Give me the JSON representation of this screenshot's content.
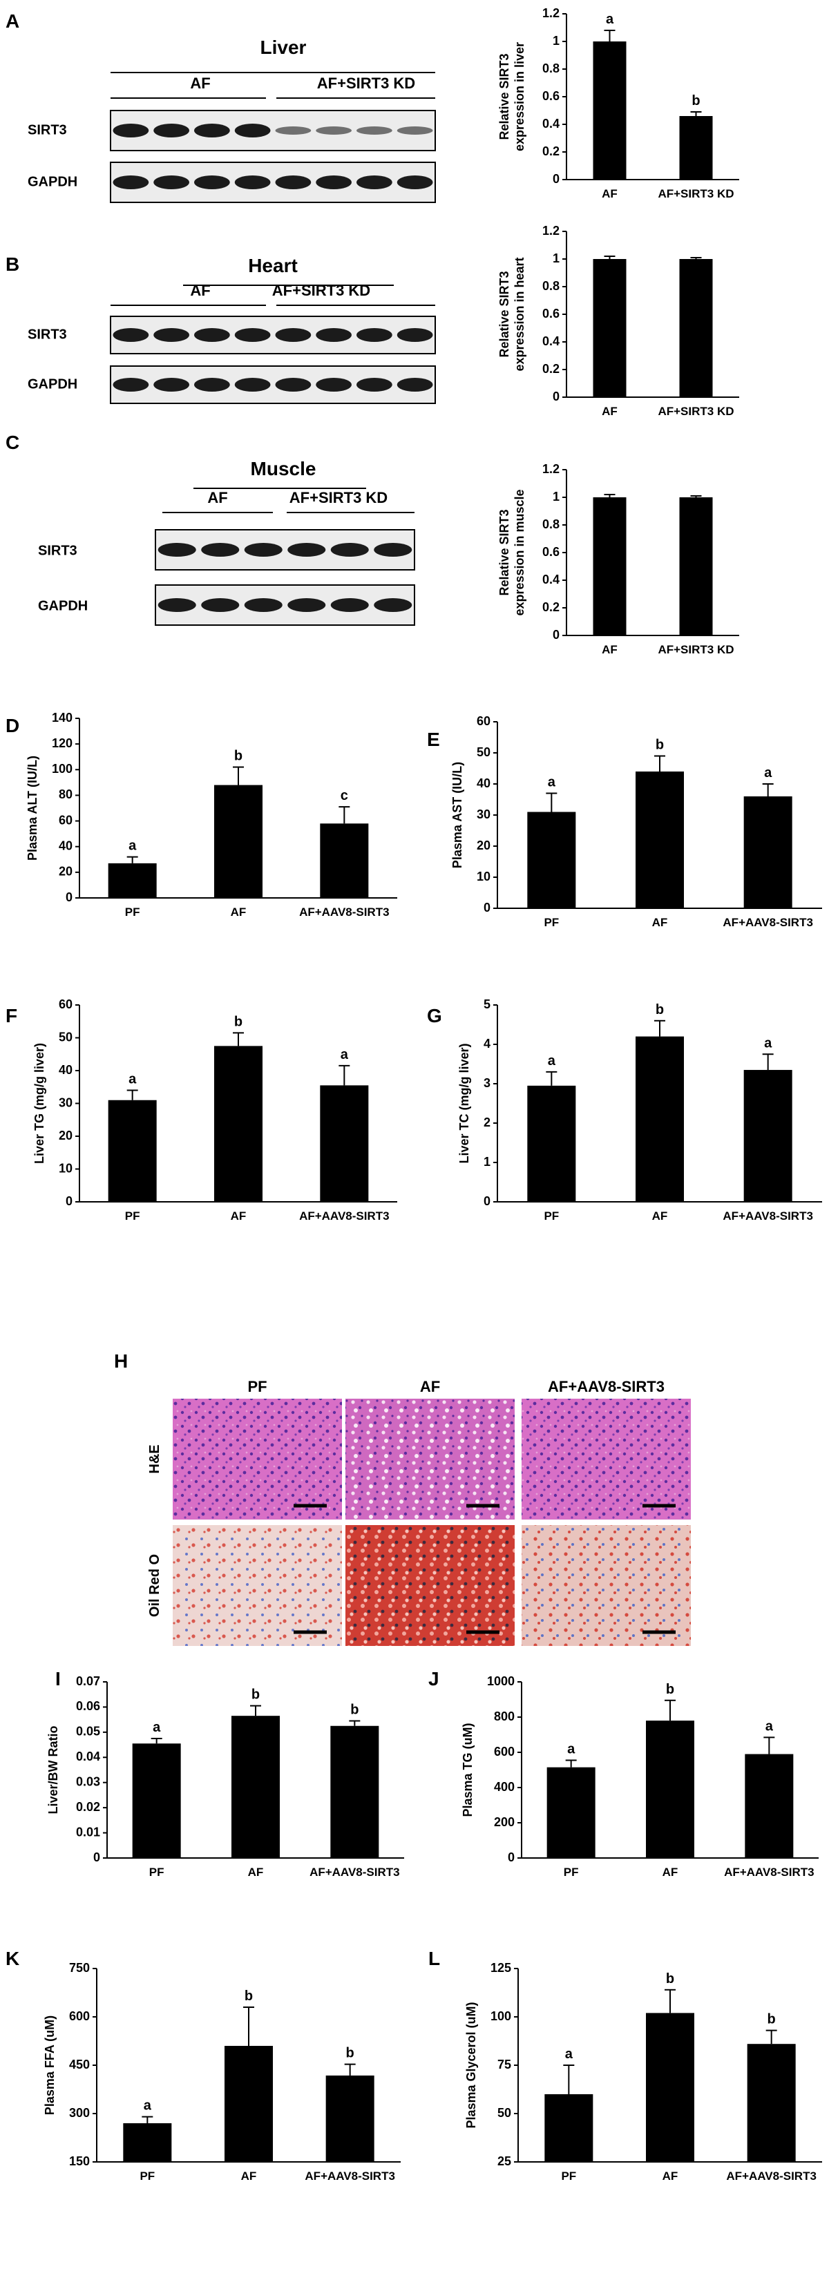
{
  "panels": {
    "A": "A",
    "B": "B",
    "C": "C",
    "D": "D",
    "E": "E",
    "F": "F",
    "G": "G",
    "H": "H",
    "I": "I",
    "J": "J",
    "K": "K",
    "L": "L"
  },
  "blots": [
    {
      "tissue": "Liver",
      "group1": "AF",
      "group2": "AF+SIRT3 KD",
      "band1": "SIRT3",
      "band2": "GAPDH"
    },
    {
      "tissue": "Heart",
      "group1": "AF",
      "group2": "AF+SIRT3 KD",
      "band1": "SIRT3",
      "band2": "GAPDH"
    },
    {
      "tissue": "Muscle",
      "group1": "AF",
      "group2": "AF+SIRT3 KD",
      "band1": "SIRT3",
      "band2": "GAPDH"
    }
  ],
  "histology": {
    "columns": [
      "PF",
      "AF",
      "AF+AAV8-SIRT3"
    ],
    "rows": [
      "H&E",
      "Oil Red O"
    ]
  },
  "chart_data": [
    {
      "panel": "A",
      "type": "bar",
      "categories": [
        "AF",
        "AF+SIRT3 KD"
      ],
      "values": [
        1.0,
        0.46
      ],
      "errors": [
        0.08,
        0.03
      ],
      "letters": [
        "a",
        "b"
      ],
      "ylabel": "Relative SIRT3 expression in liver",
      "ylim": [
        0,
        1.2
      ],
      "yticks": [
        "0",
        "0.2",
        "0.4",
        "0.6",
        "0.8",
        "1",
        "1.2"
      ]
    },
    {
      "panel": "B",
      "type": "bar",
      "categories": [
        "AF",
        "AF+SIRT3 KD"
      ],
      "values": [
        1.0,
        1.0
      ],
      "errors": [
        0.02,
        0.01
      ],
      "letters": [
        "",
        ""
      ],
      "ylabel": "Relative SIRT3 expression in heart",
      "ylim": [
        0,
        1.2
      ],
      "yticks": [
        "0",
        "0.2",
        "0.4",
        "0.6",
        "0.8",
        "1",
        "1.2"
      ]
    },
    {
      "panel": "C",
      "type": "bar",
      "categories": [
        "AF",
        "AF+SIRT3 KD"
      ],
      "values": [
        1.0,
        1.0
      ],
      "errors": [
        0.02,
        0.01
      ],
      "letters": [
        "",
        ""
      ],
      "ylabel": "Relative SIRT3 expression in muscle",
      "ylim": [
        0,
        1.2
      ],
      "yticks": [
        "0",
        "0.2",
        "0.4",
        "0.6",
        "0.8",
        "1",
        "1.2"
      ]
    },
    {
      "panel": "D",
      "type": "bar",
      "categories": [
        "PF",
        "AF",
        "AF+AAV8-SIRT3"
      ],
      "values": [
        27,
        88,
        58
      ],
      "errors": [
        5,
        14,
        13
      ],
      "letters": [
        "a",
        "b",
        "c"
      ],
      "ylabel": "Plasma ALT (IU/L)",
      "ylim": [
        0,
        140
      ],
      "yticks": [
        "0",
        "20",
        "40",
        "60",
        "80",
        "100",
        "120",
        "140"
      ]
    },
    {
      "panel": "E",
      "type": "bar",
      "categories": [
        "PF",
        "AF",
        "AF+AAV8-SIRT3"
      ],
      "values": [
        31,
        44,
        36
      ],
      "errors": [
        6,
        5,
        4
      ],
      "letters": [
        "a",
        "b",
        "a"
      ],
      "ylabel": "Plasma AST (IU/L)",
      "ylim": [
        0,
        60
      ],
      "yticks": [
        "0",
        "10",
        "20",
        "30",
        "40",
        "50",
        "60"
      ]
    },
    {
      "panel": "F",
      "type": "bar",
      "categories": [
        "PF",
        "AF",
        "AF+AAV8-SIRT3"
      ],
      "values": [
        31,
        47.5,
        35.5
      ],
      "errors": [
        3,
        4,
        6
      ],
      "letters": [
        "a",
        "b",
        "a"
      ],
      "ylabel": "Liver TG (mg/g liver)",
      "ylim": [
        0,
        60
      ],
      "yticks": [
        "0",
        "10",
        "20",
        "30",
        "40",
        "50",
        "60"
      ]
    },
    {
      "panel": "G",
      "type": "bar",
      "categories": [
        "PF",
        "AF",
        "AF+AAV8-SIRT3"
      ],
      "values": [
        2.95,
        4.2,
        3.35
      ],
      "errors": [
        0.35,
        0.4,
        0.4
      ],
      "letters": [
        "a",
        "b",
        "a"
      ],
      "ylabel": "Liver TC (mg/g liver)",
      "ylim": [
        0,
        5
      ],
      "yticks": [
        "0",
        "1",
        "2",
        "3",
        "4",
        "5"
      ]
    },
    {
      "panel": "I",
      "type": "bar",
      "categories": [
        "PF",
        "AF",
        "AF+AAV8-SIRT3"
      ],
      "values": [
        0.0455,
        0.0565,
        0.0525
      ],
      "errors": [
        0.002,
        0.004,
        0.002
      ],
      "letters": [
        "a",
        "b",
        "b"
      ],
      "ylabel": "Liver/BW Ratio",
      "ylim": [
        0,
        0.07
      ],
      "yticks": [
        "0",
        "0.01",
        "0.02",
        "0.03",
        "0.04",
        "0.05",
        "0.06",
        "0.07"
      ]
    },
    {
      "panel": "J",
      "type": "bar",
      "categories": [
        "PF",
        "AF",
        "AF+AAV8-SIRT3"
      ],
      "values": [
        515,
        780,
        590
      ],
      "errors": [
        40,
        115,
        95
      ],
      "letters": [
        "a",
        "b",
        "a"
      ],
      "ylabel": "Plasma TG (uM)",
      "ylim": [
        0,
        1000
      ],
      "yticks": [
        "0",
        "200",
        "400",
        "600",
        "800",
        "1000"
      ]
    },
    {
      "panel": "K",
      "type": "bar",
      "categories": [
        "PF",
        "AF",
        "AF+AAV8-SIRT3"
      ],
      "values": [
        270,
        510,
        418
      ],
      "errors": [
        20,
        120,
        35
      ],
      "letters": [
        "a",
        "b",
        "b"
      ],
      "ylabel": "Plasma FFA (uM)",
      "ylim": [
        150,
        750
      ],
      "yticks": [
        "150",
        "300",
        "450",
        "600",
        "750"
      ]
    },
    {
      "panel": "L",
      "type": "bar",
      "categories": [
        "PF",
        "AF",
        "AF+AAV8-SIRT3"
      ],
      "values": [
        60,
        102,
        86
      ],
      "errors": [
        15,
        12,
        7
      ],
      "letters": [
        "a",
        "b",
        "b"
      ],
      "ylabel": "Plasma Glycerol (uM)",
      "ylim": [
        25,
        125
      ],
      "yticks": [
        "25",
        "50",
        "75",
        "100",
        "125"
      ]
    }
  ]
}
